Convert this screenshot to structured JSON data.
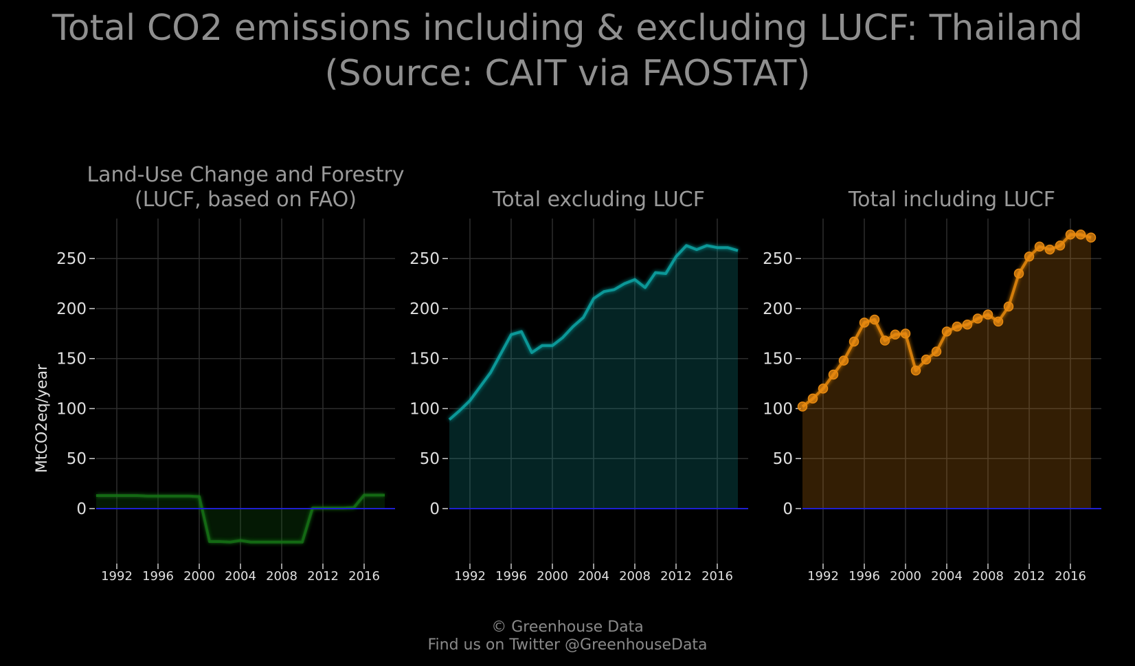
{
  "title": {
    "line1": "Total CO2 emissions including & excluding LUCF: Thailand",
    "line2": "(Source: CAIT via FAOSTAT)"
  },
  "footer": {
    "line1": "© Greenhouse Data",
    "line2": "Find us on Twitter @GreenhouseData"
  },
  "colors": {
    "background": "#000000",
    "grid": "#2e2e2e",
    "zero_line": "#1f1fd0",
    "lucf": "#137313",
    "excluding": "#11a6a6",
    "including": "#e88a10"
  },
  "chart_data": [
    {
      "type": "area",
      "title": [
        "Land-Use Change and Forestry",
        "(LUCF, based on FAO)"
      ],
      "ylabel": "MtCO2eq/year",
      "xlabel": "",
      "xlim": [
        1990,
        2019
      ],
      "ylim": [
        -55,
        290
      ],
      "yticks": [
        0,
        50,
        100,
        150,
        200,
        250
      ],
      "xticks": [
        1992,
        1996,
        2000,
        2004,
        2008,
        2012,
        2016
      ],
      "grid": true,
      "markers": false,
      "series": [
        {
          "x": [
            1990,
            1991,
            1992,
            1993,
            1994,
            1995,
            1996,
            1997,
            1998,
            1999,
            2000,
            2001,
            2002,
            2003,
            2004,
            2005,
            2006,
            2007,
            2008,
            2009,
            2010,
            2011,
            2012,
            2013,
            2014,
            2015,
            2016,
            2017,
            2018
          ],
          "values": [
            13,
            13,
            13,
            13,
            13,
            12.5,
            12.5,
            12.5,
            12.5,
            12.5,
            12,
            -33,
            -33,
            -33.5,
            -32,
            -33.5,
            -33.5,
            -33.5,
            -33.5,
            -33.5,
            -33.5,
            0.5,
            0.5,
            0.5,
            0.5,
            1,
            13.5,
            13.5,
            13.5
          ]
        }
      ]
    },
    {
      "type": "area",
      "title": [
        "Total excluding LUCF"
      ],
      "ylabel": "",
      "xlabel": "",
      "xlim": [
        1990,
        2019
      ],
      "ylim": [
        -55,
        290
      ],
      "yticks": [
        0,
        50,
        100,
        150,
        200,
        250
      ],
      "xticks": [
        1992,
        1996,
        2000,
        2004,
        2008,
        2012,
        2016
      ],
      "grid": true,
      "markers": false,
      "series": [
        {
          "x": [
            1990,
            1991,
            1992,
            1993,
            1994,
            1995,
            1996,
            1997,
            1998,
            1999,
            2000,
            2001,
            2002,
            2003,
            2004,
            2005,
            2006,
            2007,
            2008,
            2009,
            2010,
            2011,
            2012,
            2013,
            2014,
            2015,
            2016,
            2017,
            2018
          ],
          "values": [
            89,
            98,
            108,
            122,
            136,
            155,
            174,
            177,
            156,
            163,
            163,
            171,
            182,
            191,
            210,
            217,
            219,
            225,
            229,
            221,
            236,
            235,
            252,
            263,
            259,
            263,
            261,
            261,
            258
          ]
        }
      ]
    },
    {
      "type": "area",
      "title": [
        "Total including LUCF"
      ],
      "ylabel": "",
      "xlabel": "",
      "xlim": [
        1990,
        2019
      ],
      "ylim": [
        -55,
        290
      ],
      "yticks": [
        0,
        50,
        100,
        150,
        200,
        250
      ],
      "xticks": [
        1992,
        1996,
        2000,
        2004,
        2008,
        2012,
        2016
      ],
      "grid": true,
      "markers": true,
      "series": [
        {
          "x": [
            1990,
            1991,
            1992,
            1993,
            1994,
            1995,
            1996,
            1997,
            1998,
            1999,
            2000,
            2001,
            2002,
            2003,
            2004,
            2005,
            2006,
            2007,
            2008,
            2009,
            2010,
            2011,
            2012,
            2013,
            2014,
            2015,
            2016,
            2017,
            2018
          ],
          "values": [
            102,
            110,
            120,
            134,
            148,
            167,
            186,
            189,
            168,
            174,
            175,
            138,
            149,
            157,
            177,
            182,
            184,
            190,
            194,
            187,
            202,
            235,
            252,
            262,
            259,
            263,
            274,
            274,
            271
          ]
        }
      ]
    }
  ]
}
